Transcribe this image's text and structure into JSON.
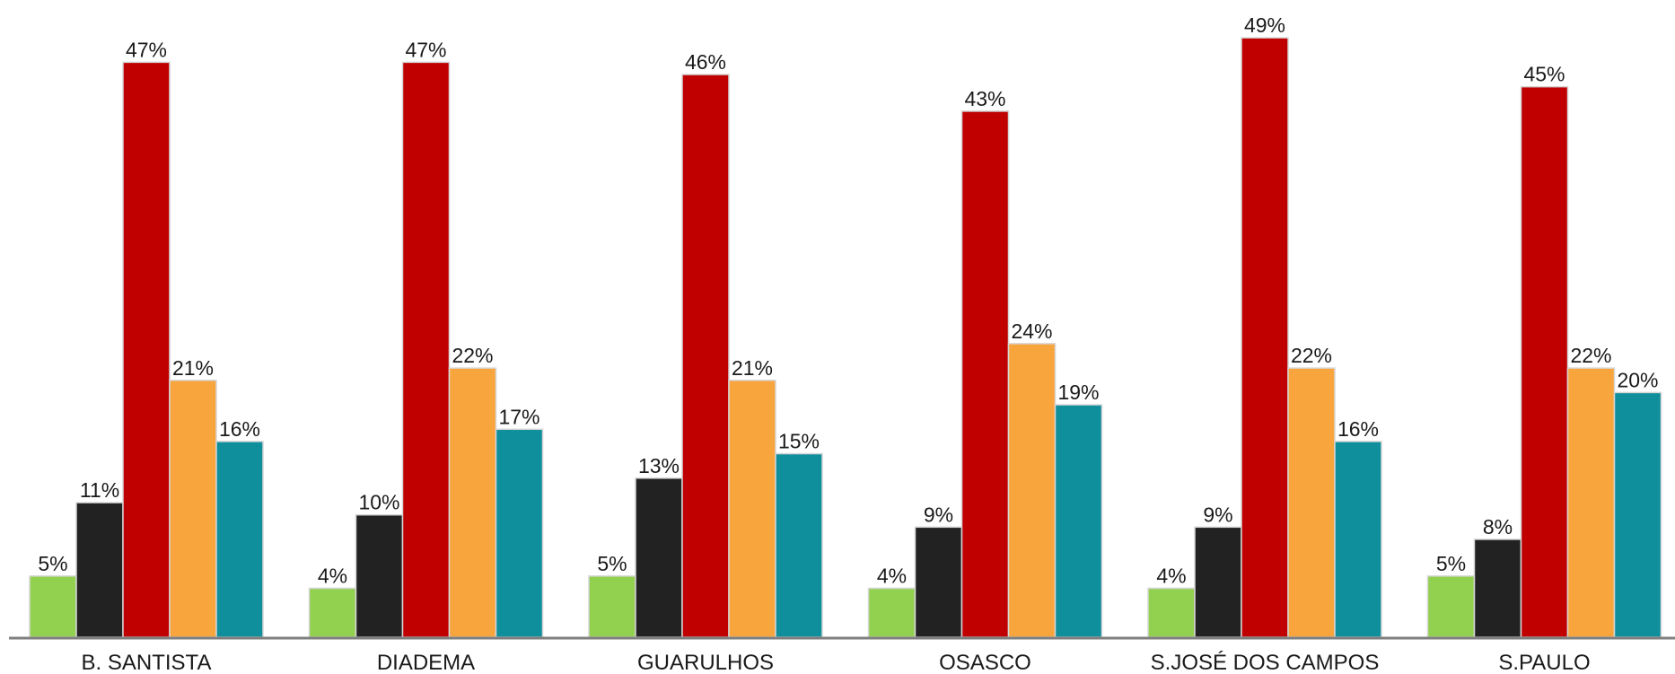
{
  "chart_data": {
    "type": "bar",
    "title": "",
    "xlabel": "",
    "ylabel": "",
    "ylim": [
      0,
      50
    ],
    "grid": false,
    "legend": "none",
    "categories": [
      "B. SANTISTA",
      "DIADEMA",
      "GUARULHOS",
      "OSASCO",
      "S.JOSÉ DOS CAMPOS",
      "S.PAULO"
    ],
    "series": [
      {
        "color": "#92d050",
        "values": [
          5,
          4,
          5,
          4,
          4,
          5
        ],
        "labels": [
          "5%",
          "4%",
          "5%",
          "4%",
          "4%",
          "5%"
        ]
      },
      {
        "color": "#222222",
        "values": [
          11,
          10,
          13,
          9,
          9,
          8
        ],
        "labels": [
          "11%",
          "10%",
          "13%",
          "9%",
          "9%",
          "8%"
        ]
      },
      {
        "color": "#c00000",
        "values": [
          47,
          47,
          46,
          43,
          49,
          45
        ],
        "labels": [
          "47%",
          "47%",
          "46%",
          "43%",
          "49%",
          "45%"
        ]
      },
      {
        "color": "#f9a53e",
        "values": [
          21,
          22,
          21,
          24,
          22,
          22
        ],
        "labels": [
          "21%",
          "22%",
          "21%",
          "24%",
          "22%",
          "22%"
        ]
      },
      {
        "color": "#0f8f9c",
        "values": [
          16,
          17,
          15,
          19,
          16,
          20
        ],
        "labels": [
          "16%",
          "17%",
          "15%",
          "19%",
          "16%",
          "20%"
        ]
      }
    ]
  }
}
